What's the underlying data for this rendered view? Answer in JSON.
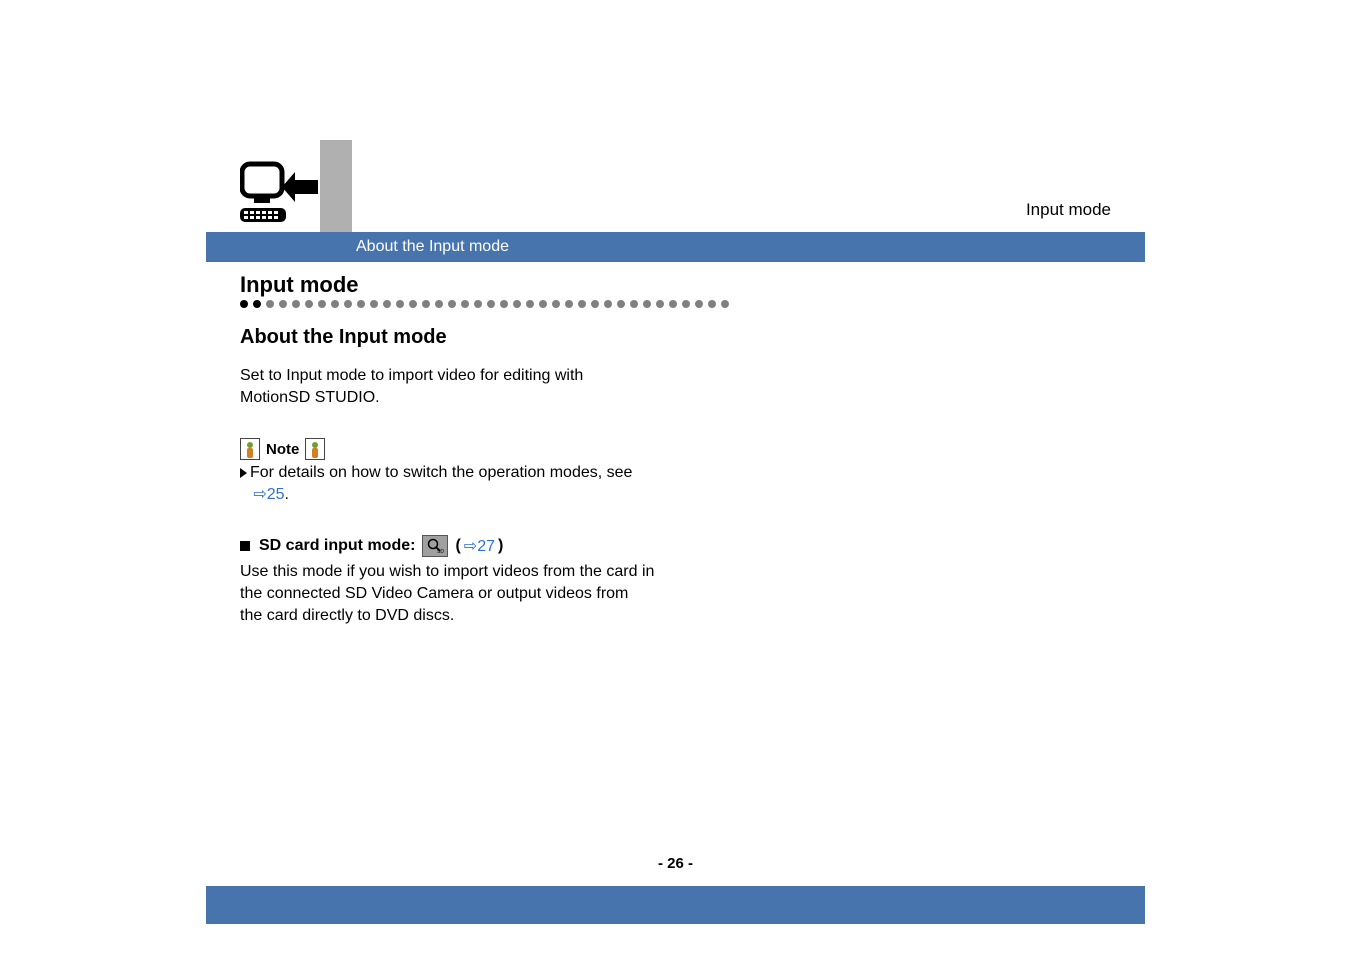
{
  "colors": {
    "blue_bar": "#4774ac",
    "gray_side": "#b0b0b0",
    "link": "#3070d0",
    "dot_dark": "#000000",
    "dot_light": "#808080",
    "text": "#000000",
    "white": "#ffffff",
    "icon_bg": "#a0a0a0",
    "icon_border": "#555555",
    "note_icon_person": "#d08020",
    "note_icon_head": "#70a030"
  },
  "header": {
    "running_head": "Input mode"
  },
  "bluebar": {
    "title": "About the Input mode"
  },
  "section": {
    "h1": "Input mode",
    "h2": "About the Input mode",
    "intro_line1": "Set to Input mode to import video for editing with",
    "intro_line2": "MotionSD STUDIO."
  },
  "note": {
    "label": "Note",
    "text": "For details on how to switch the operation modes, see",
    "link_text": "25",
    "link_suffix": "."
  },
  "mode": {
    "prefix": "SD card input mode:",
    "paren_open": "(",
    "link_text": "27",
    "paren_close": ")",
    "body_line1": "Use this mode if you wish to import videos from the card in",
    "body_line2": "the connected SD Video Camera or output videos from",
    "body_line3": "the card directly to DVD discs."
  },
  "footer": {
    "page_number": "- 26 -"
  },
  "dots": {
    "count": 38,
    "dark_count": 2
  }
}
